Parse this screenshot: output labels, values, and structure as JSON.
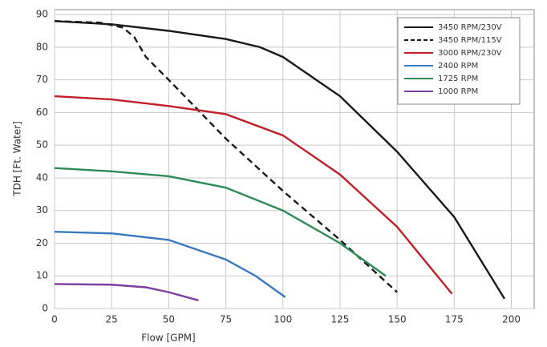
{
  "chart_data": {
    "type": "line",
    "x_label": "Flow [GPM]",
    "y_label": "TDH [Ft. Water]",
    "xlim": [
      0,
      210
    ],
    "xticks": [
      0,
      25,
      50,
      75,
      100,
      125,
      150,
      175,
      200
    ],
    "ylim": [
      0,
      91.5
    ],
    "yticks": [
      0,
      10,
      20,
      30,
      40,
      50,
      60,
      70,
      80,
      90
    ],
    "grid": true,
    "legend": "upper right",
    "series": [
      {
        "name": "3450 RPM/230V",
        "color": "#1a1a1a",
        "style": "solid",
        "x": [
          0,
          25,
          50,
          75,
          90,
          100,
          125,
          150,
          175,
          197
        ],
        "values": [
          88,
          87,
          85,
          82.5,
          80,
          77,
          65,
          48,
          28,
          3
        ]
      },
      {
        "name": "3450 RPM/115V",
        "color": "#1a1a1a",
        "style": "dashed",
        "x": [
          0,
          20,
          30,
          35,
          40,
          50,
          75,
          100,
          125,
          150
        ],
        "values": [
          88,
          87.5,
          86,
          83,
          77,
          70,
          52,
          36,
          21,
          5
        ]
      },
      {
        "name": "3000 RPM/230V",
        "color": "#c0202a",
        "style": "solid",
        "x": [
          0,
          25,
          50,
          75,
          100,
          125,
          150,
          174
        ],
        "values": [
          65,
          64,
          62,
          59.5,
          53,
          41,
          25,
          4.5
        ]
      },
      {
        "name": "2400 RPM",
        "color": "#3a78c2",
        "style": "solid",
        "x": [
          0,
          25,
          50,
          75,
          88,
          101
        ],
        "values": [
          23.5,
          23,
          21,
          15,
          10,
          3.5
        ]
      },
      {
        "name": "1725 RPM",
        "color": "#2e8b57",
        "style": "solid",
        "x": [
          0,
          25,
          50,
          75,
          100,
          125,
          145
        ],
        "values": [
          43,
          42,
          40.5,
          37,
          30,
          20,
          10
        ]
      },
      {
        "name": "1000 RPM",
        "color": "#7b3fa0",
        "style": "solid",
        "x": [
          0,
          25,
          40,
          50,
          63
        ],
        "values": [
          7.5,
          7.3,
          6.5,
          5,
          2.5
        ]
      }
    ]
  }
}
